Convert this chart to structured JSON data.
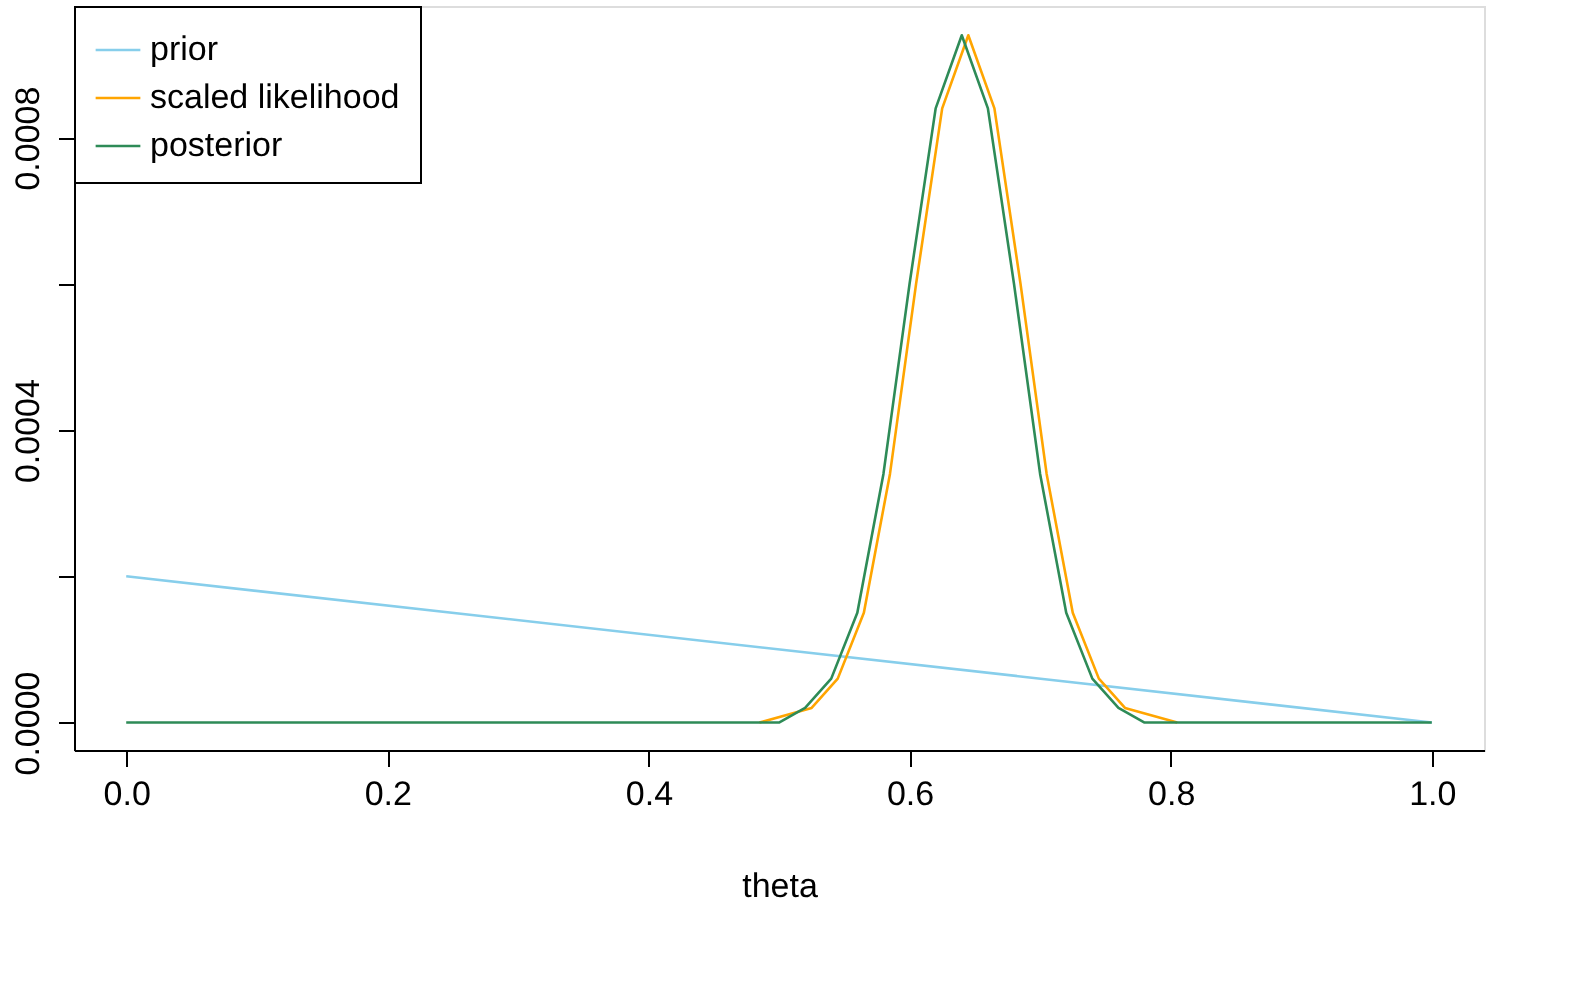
{
  "chart_data": {
    "type": "line",
    "xlabel": "theta",
    "xlim": [
      -0.04,
      1.04
    ],
    "ylim": [
      -3.76e-05,
      0.00098
    ],
    "xticks": [
      {
        "value": 0,
        "label": "0.0"
      },
      {
        "value": 0.2,
        "label": "0.2"
      },
      {
        "value": 0.4,
        "label": "0.4"
      },
      {
        "value": 0.6,
        "label": "0.6"
      },
      {
        "value": 0.8,
        "label": "0.8"
      },
      {
        "value": 1,
        "label": "1.0"
      }
    ],
    "yticks": [
      {
        "value": 0,
        "label": "0.0000"
      },
      {
        "value": 0.0002,
        "label": null
      },
      {
        "value": 0.0004,
        "label": "0.0004"
      },
      {
        "value": 0.0006,
        "label": null
      },
      {
        "value": 0.0008,
        "label": "0.0008"
      }
    ],
    "grid": false,
    "legend": "top left",
    "marker": "none",
    "line_style": "solid",
    "series": [
      {
        "name": "prior",
        "color": "#87ceeb",
        "x": [
          0,
          1
        ],
        "values": [
          0.0002,
          0
        ]
      },
      {
        "name": "scaled likelihood",
        "color": "#ffa500",
        "x": [
          0.485,
          0.525,
          0.545,
          0.565,
          0.585,
          0.605,
          0.625,
          0.645,
          0.665,
          0.685,
          0.705,
          0.725,
          0.745,
          0.765,
          0.805
        ],
        "values": [
          0,
          2e-05,
          6e-05,
          0.00015,
          0.00034,
          0.0006,
          0.00084,
          0.00094,
          0.00084,
          0.0006,
          0.00034,
          0.00015,
          6e-05,
          2e-05,
          0
        ]
      },
      {
        "name": "posterior",
        "color": "#2e8b57",
        "x": [
          0,
          0.2,
          0.4,
          0.48,
          0.5,
          0.52,
          0.54,
          0.56,
          0.58,
          0.6,
          0.62,
          0.64,
          0.66,
          0.68,
          0.7,
          0.72,
          0.74,
          0.76,
          0.78,
          0.8,
          0.9,
          1
        ],
        "values": [
          0,
          0,
          0,
          0,
          0,
          2e-05,
          6e-05,
          0.00015,
          0.00034,
          0.0006,
          0.00084,
          0.00094,
          0.00084,
          0.0006,
          0.00034,
          0.00015,
          6e-05,
          2e-05,
          0,
          0,
          0,
          0
        ]
      }
    ]
  }
}
